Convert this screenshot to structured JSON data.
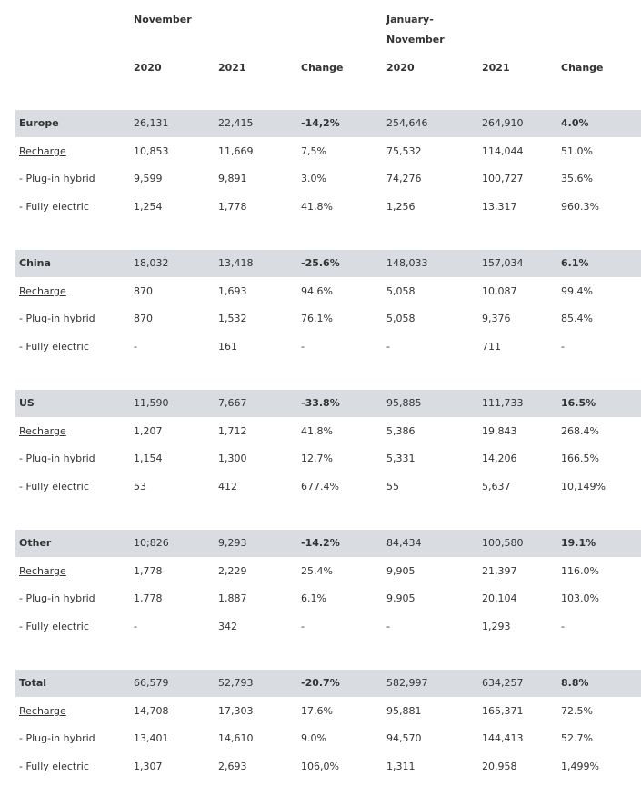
{
  "header": {
    "group1": "November",
    "group2_line1": "January-",
    "group2_line2": "November",
    "col_2020_a": "2020",
    "col_2021_a": "2021",
    "col_change_a": "Change",
    "col_2020_b": "2020",
    "col_2021_b": "2021",
    "col_change_b": "Change"
  },
  "regions": [
    {
      "summary": {
        "label": "Europe",
        "nov2020": "26,131",
        "nov2021": "22,415",
        "nov_change": "-14,2%",
        "ytd2020": "254,646",
        "ytd2021": "264,910",
        "ytd_change": "4.0%"
      },
      "rows": [
        {
          "label": "Recharge",
          "nov2020": "10,853",
          "nov2021": "11,669",
          "nov_change": "7,5%",
          "ytd2020": "75,532",
          "ytd2021": "114,044",
          "ytd_change": "51.0%"
        },
        {
          "label": " - Plug-in hybrid",
          "nov2020": "9,599",
          "nov2021": "9,891",
          "nov_change": "3.0%",
          "ytd2020": "74,276",
          "ytd2021": "100,727",
          "ytd_change": "35.6%"
        },
        {
          "label": " - Fully electric",
          "nov2020": "1,254",
          "nov2021": "1,778",
          "nov_change": "41,8%",
          "ytd2020": "1,256",
          "ytd2021": "13,317",
          "ytd_change": "960.3%"
        }
      ]
    },
    {
      "summary": {
        "label": "China",
        "nov2020": "18,032",
        "nov2021": "13,418",
        "nov_change": "-25.6%",
        "ytd2020": "148,033",
        "ytd2021": "157,034",
        "ytd_change": "6.1%"
      },
      "rows": [
        {
          "label": "Recharge",
          "nov2020": "870",
          "nov2021": "1,693",
          "nov_change": "94.6%",
          "ytd2020": "5,058",
          "ytd2021": "10,087",
          "ytd_change": "99.4%"
        },
        {
          "label": " - Plug-in hybrid",
          "nov2020": "870",
          "nov2021": "1,532",
          "nov_change": "76.1%",
          "ytd2020": "5,058",
          "ytd2021": "9,376",
          "ytd_change": "85.4%"
        },
        {
          "label": " - Fully electric",
          "nov2020": "-",
          "nov2021": "161",
          "nov_change": "-",
          "ytd2020": "-",
          "ytd2021": "711",
          "ytd_change": "-"
        }
      ]
    },
    {
      "summary": {
        "label": "US",
        "nov2020": "11,590",
        "nov2021": "7,667",
        "nov_change": "-33.8%",
        "ytd2020": "95,885",
        "ytd2021": "111,733",
        "ytd_change": "16.5%"
      },
      "rows": [
        {
          "label": "Recharge",
          "nov2020": "1,207",
          "nov2021": "1,712",
          "nov_change": "41.8%",
          "ytd2020": "5,386",
          "ytd2021": "19,843",
          "ytd_change": "268.4%"
        },
        {
          "label": " - Plug-in hybrid",
          "nov2020": "1,154",
          "nov2021": "1,300",
          "nov_change": "12.7%",
          "ytd2020": "5,331",
          "ytd2021": "14,206",
          "ytd_change": "166.5%"
        },
        {
          "label": " - Fully electric",
          "nov2020": "53",
          "nov2021": "412",
          "nov_change": "677.4%",
          "ytd2020": "55",
          "ytd2021": "5,637",
          "ytd_change": "10,149%"
        }
      ]
    },
    {
      "summary": {
        "label": "Other",
        "nov2020": "10;826",
        "nov2021": "9,293",
        "nov_change": "-14.2%",
        "ytd2020": "84,434",
        "ytd2021": "100,580",
        "ytd_change": "19.1%"
      },
      "rows": [
        {
          "label": "Recharge",
          "nov2020": "1,778",
          "nov2021": "2,229",
          "nov_change": "25.4%",
          "ytd2020": "9,905",
          "ytd2021": "21,397",
          "ytd_change": "116.0%"
        },
        {
          "label": " - Plug-in hybrid",
          "nov2020": "1,778",
          "nov2021": "1,887",
          "nov_change": "6.1%",
          "ytd2020": "9,905",
          "ytd2021": "20,104",
          "ytd_change": "103.0%"
        },
        {
          "label": " - Fully electric",
          "nov2020": "-",
          "nov2021": "342",
          "nov_change": "-",
          "ytd2020": "-",
          "ytd2021": "1,293",
          "ytd_change": "-"
        }
      ]
    },
    {
      "summary": {
        "label": "Total",
        "nov2020": "66,579",
        "nov2021": "52,793",
        "nov_change": "-20.7%",
        "ytd2020": "582,997",
        "ytd2021": "634,257",
        "ytd_change": "8.8%"
      },
      "rows": [
        {
          "label": "Recharge",
          "nov2020": "14,708",
          "nov2021": "17,303",
          "nov_change": "17.6%",
          "ytd2020": "95,881",
          "ytd2021": "165,371",
          "ytd_change": "72.5%"
        },
        {
          "label": " - Plug-in hybrid",
          "nov2020": "13,401",
          "nov2021": "14,610",
          "nov_change": "9.0%",
          "ytd2020": "94,570",
          "ytd2021": "144,413",
          "ytd_change": "52.7%"
        },
        {
          "label": " - Fully electric",
          "nov2020": "1,307",
          "nov2021": "2,693",
          "nov_change": "106,0%",
          "ytd2020": "1,311",
          "ytd2021": "20,958",
          "ytd_change": "1,499%"
        }
      ]
    }
  ]
}
